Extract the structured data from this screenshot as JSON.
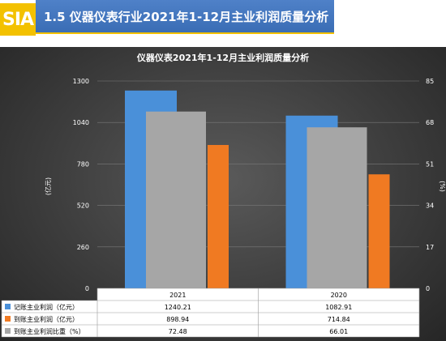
{
  "header": {
    "logo_text": "SIA",
    "title": "1.5  仪器仪表行业2021年1-12月主业利润质量分析"
  },
  "chart_data": {
    "type": "bar",
    "title": "仪器仪表2021年1-12月主业利润质量分析",
    "categories": [
      "2021",
      "2020"
    ],
    "series": [
      {
        "name": "记账主业利润（亿元）",
        "axis": "left",
        "color": "#4a90d9",
        "values": [
          1240.21,
          1082.91
        ],
        "labels": [
          "1240.21",
          "1082.91"
        ]
      },
      {
        "name": "到账主业利润（亿元）",
        "axis": "left",
        "color": "#f07a22",
        "values": [
          898.94,
          714.84
        ],
        "labels": [
          "898.94",
          "714.84"
        ]
      },
      {
        "name": "到账主业利润比重（%）",
        "axis": "right",
        "color": "#a6a6a6",
        "values": [
          72.48,
          66.01
        ],
        "labels": [
          "72.48",
          "66.01"
        ]
      }
    ],
    "ylabel": "(亿元)",
    "y2label": "(%)",
    "ylim": [
      0,
      1300
    ],
    "y2lim": [
      0,
      85
    ],
    "yticks": [
      "0",
      "260",
      "520",
      "780",
      "1040",
      "1300"
    ],
    "y2ticks": [
      "0",
      "17",
      "34",
      "51",
      "68",
      "85"
    ],
    "grid": true,
    "legend": "data-table"
  }
}
